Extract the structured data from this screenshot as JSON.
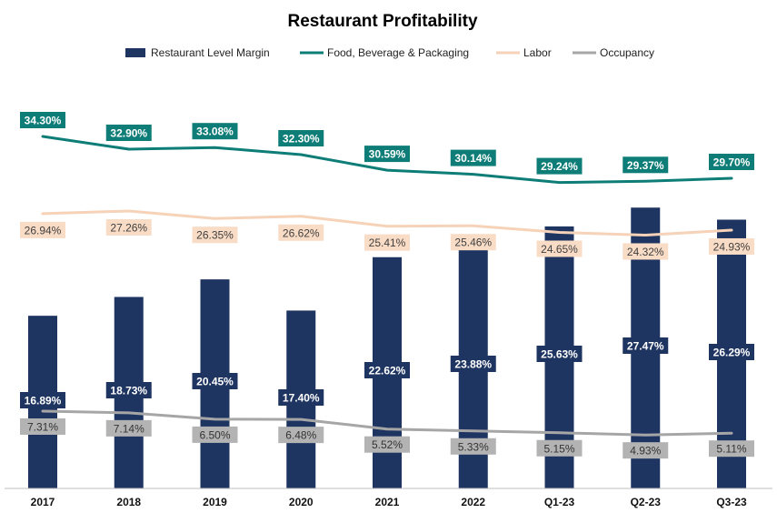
{
  "chart_data": {
    "type": "bar",
    "title": "Restaurant Profitability",
    "categories": [
      "2017",
      "2018",
      "2019",
      "2020",
      "2021",
      "2022",
      "Q1-23",
      "Q2-23",
      "Q3-23"
    ],
    "series": [
      {
        "name": "Restaurant Level Margin",
        "type": "bar",
        "color": "#1f3561",
        "values": [
          16.89,
          18.73,
          20.45,
          17.4,
          22.62,
          23.88,
          25.63,
          27.47,
          26.29
        ],
        "labels": [
          "16.89%",
          "18.73%",
          "20.45%",
          "17.40%",
          "22.62%",
          "23.88%",
          "25.63%",
          "27.47%",
          "26.29%"
        ]
      },
      {
        "name": "Food, Beverage & Packaging",
        "type": "line",
        "color": "#0e7d78",
        "values": [
          34.3,
          32.9,
          33.08,
          32.3,
          30.59,
          30.14,
          29.24,
          29.37,
          29.7
        ],
        "labels": [
          "34.30%",
          "32.90%",
          "33.08%",
          "32.30%",
          "30.59%",
          "30.14%",
          "29.24%",
          "29.37%",
          "29.70%"
        ]
      },
      {
        "name": "Labor",
        "type": "line",
        "color": "#f6d2b8",
        "values": [
          26.94,
          27.26,
          26.35,
          26.62,
          25.41,
          25.46,
          24.65,
          24.32,
          24.93
        ],
        "labels": [
          "26.94%",
          "27.26%",
          "26.35%",
          "26.62%",
          "25.41%",
          "25.46%",
          "24.65%",
          "24.32%",
          "24.93%"
        ]
      },
      {
        "name": "Occupancy",
        "type": "line",
        "color": "#a6a6a6",
        "values": [
          7.31,
          7.14,
          6.5,
          6.48,
          5.52,
          5.33,
          5.15,
          4.93,
          5.11
        ],
        "labels": [
          "7.31%",
          "7.14%",
          "6.50%",
          "6.48%",
          "5.52%",
          "5.33%",
          "5.15%",
          "4.93%",
          "5.11%"
        ]
      }
    ],
    "legend_position": "top",
    "grid": false
  }
}
